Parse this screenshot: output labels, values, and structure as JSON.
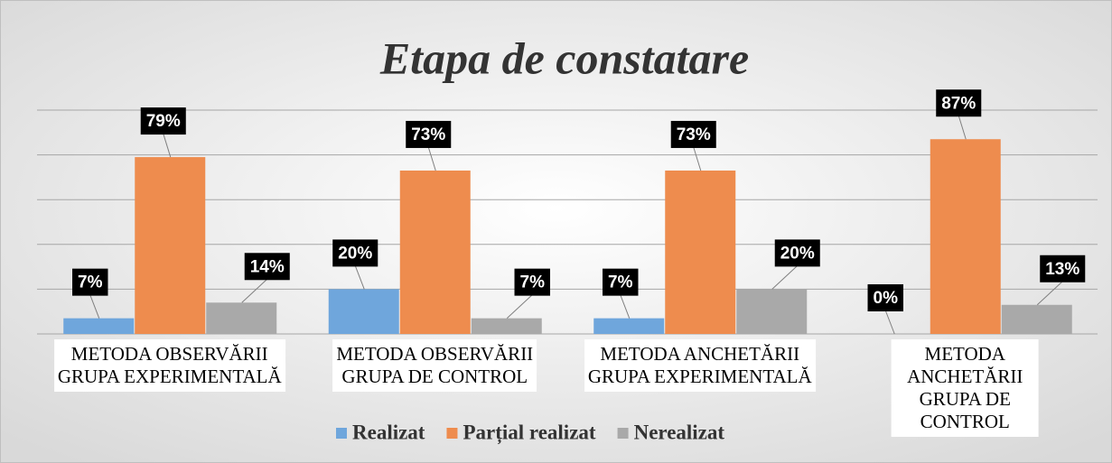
{
  "chart_data": {
    "type": "bar",
    "title": "Etapa de constatare",
    "categories": [
      "METODA OBSERVĂRII\nGRUPA EXPERIMENTALĂ",
      "METODA OBSERVĂRII\nGRUPA DE CONTROL",
      "METODA ANCHETĂRII\nGRUPA EXPERIMENTALĂ",
      "METODA ANCHETĂRII\nGRUPA DE CONTROL"
    ],
    "series": [
      {
        "name": "Realizat",
        "color": "#6fa6dc",
        "values": [
          7,
          20,
          7,
          0
        ],
        "value_labels": [
          "7%",
          "20%",
          "7%",
          "0%"
        ]
      },
      {
        "name": "Parțial realizat",
        "color": "#ee8c4e",
        "values": [
          79,
          73,
          73,
          87
        ],
        "value_labels": [
          "79%",
          "73%",
          "73%",
          "87%"
        ]
      },
      {
        "name": "Nerealizat",
        "color": "#a9a9a9",
        "values": [
          14,
          7,
          20,
          13
        ],
        "value_labels": [
          "14%",
          "7%",
          "20%",
          "13%"
        ]
      }
    ],
    "ylim": [
      0,
      100
    ],
    "yticks": [
      0,
      20,
      40,
      60,
      80,
      100
    ],
    "grid": true,
    "legend": "bottom"
  }
}
